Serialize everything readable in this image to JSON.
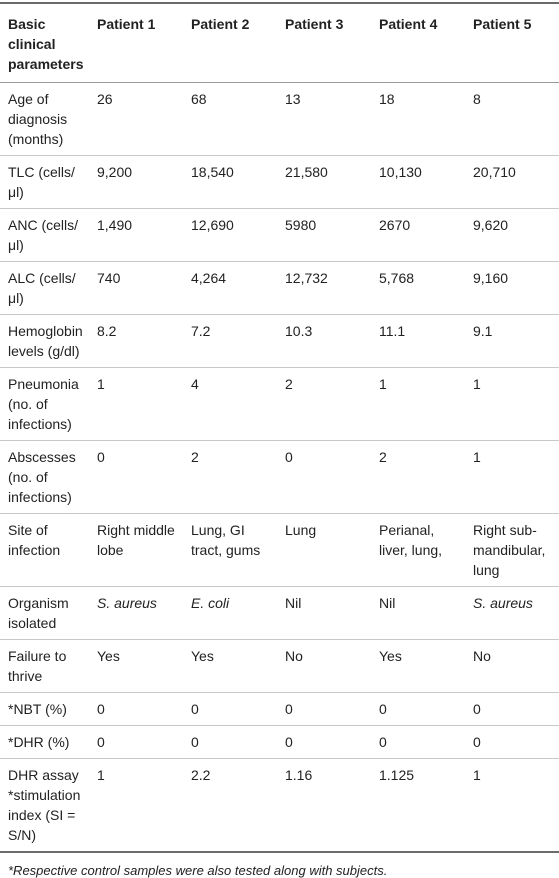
{
  "table": {
    "header": [
      "Basic clinical parameters",
      "Patient 1",
      "Patient 2",
      "Patient 3",
      "Patient 4",
      "Patient 5"
    ],
    "rows": [
      [
        "Age of diagnosis (months)",
        "26",
        "68",
        "13",
        "18",
        "8"
      ],
      [
        "TLC (cells/μl)",
        "9,200",
        "18,540",
        "21,580",
        "10,130",
        "20,710"
      ],
      [
        "ANC (cells/μl)",
        "1,490",
        "12,690",
        "5980",
        "2670",
        "9,620"
      ],
      [
        "ALC (cells/μl)",
        "740",
        "4,264",
        "12,732",
        "5,768",
        "9,160"
      ],
      [
        "Hemoglobin levels (g/dl)",
        "8.2",
        "7.2",
        "10.3",
        "11.1",
        "9.1"
      ],
      [
        "Pneumonia (no. of infections)",
        "1",
        "4",
        "2",
        "1",
        "1"
      ],
      [
        "Abscesses (no. of infections)",
        "0",
        "2",
        "0",
        "2",
        "1"
      ],
      [
        "Site of infection",
        "Right middle lobe",
        "Lung, GI tract, gums",
        "Lung",
        "Perianal, liver, lung,",
        "Right sub-mandibular, lung"
      ],
      [
        "Organism isolated",
        "S. aureus",
        "E. coli",
        "Nil",
        "Nil",
        "S. aureus"
      ],
      [
        "Failure to thrive",
        "Yes",
        "Yes",
        "No",
        "Yes",
        "No"
      ],
      [
        "*NBT (%)",
        "0",
        "0",
        "0",
        "0",
        "0"
      ],
      [
        "*DHR (%)",
        "0",
        "0",
        "0",
        "0",
        "0"
      ],
      [
        "DHR assay *stimulation index (SI = S/N)",
        "1",
        "2.2",
        "1.16",
        "1.125",
        "1"
      ]
    ]
  },
  "footnote": "*Respective control samples were also tested along with subjects."
}
